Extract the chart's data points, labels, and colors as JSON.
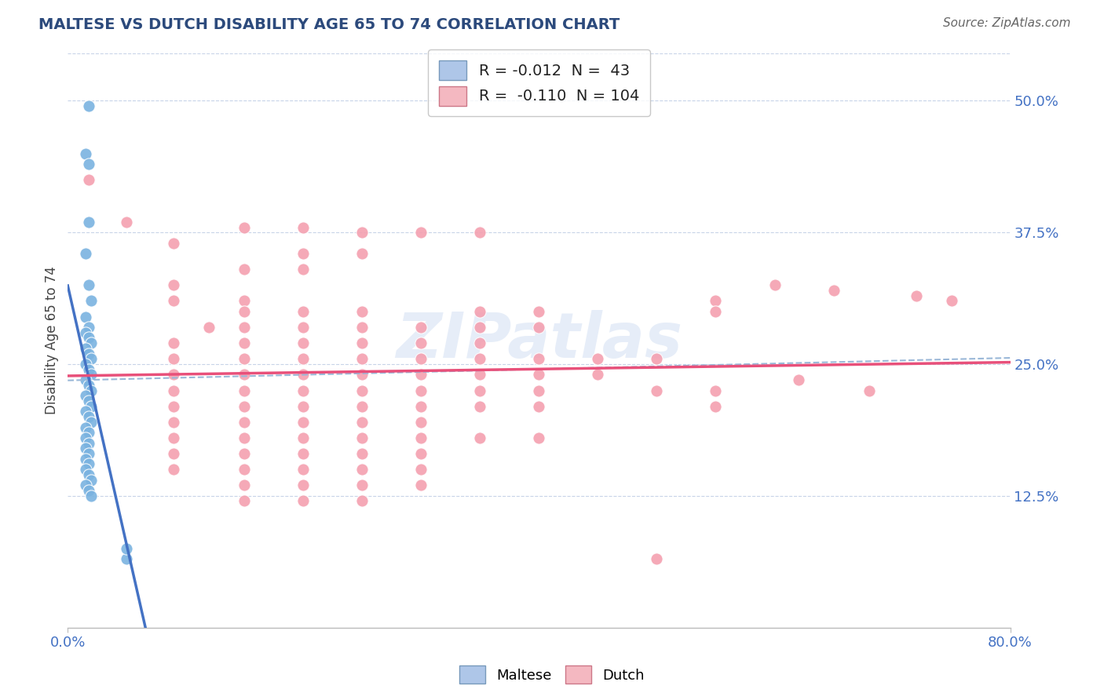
{
  "title": "MALTESE VS DUTCH DISABILITY AGE 65 TO 74 CORRELATION CHART",
  "source": "Source: ZipAtlas.com",
  "ylabel": "Disability Age 65 to 74",
  "xlim": [
    0.0,
    0.8
  ],
  "ylim": [
    0.0,
    0.545
  ],
  "ytick_labels": [
    "12.5%",
    "25.0%",
    "37.5%",
    "50.0%"
  ],
  "ytick_values": [
    0.125,
    0.25,
    0.375,
    0.5
  ],
  "maltese_color": "#7ab3e0",
  "dutch_color": "#f4a0b0",
  "maltese_line_color": "#4472c4",
  "dutch_line_color": "#e8507a",
  "trend_line_color": "#9ab8d8",
  "background_color": "#ffffff",
  "grid_color": "#c8d4e8",
  "watermark": "ZIPatlas",
  "maltese_points": [
    [
      0.018,
      0.495
    ],
    [
      0.015,
      0.45
    ],
    [
      0.018,
      0.44
    ],
    [
      0.018,
      0.385
    ],
    [
      0.015,
      0.355
    ],
    [
      0.018,
      0.325
    ],
    [
      0.02,
      0.31
    ],
    [
      0.015,
      0.295
    ],
    [
      0.018,
      0.285
    ],
    [
      0.015,
      0.28
    ],
    [
      0.018,
      0.275
    ],
    [
      0.02,
      0.27
    ],
    [
      0.015,
      0.265
    ],
    [
      0.018,
      0.26
    ],
    [
      0.02,
      0.255
    ],
    [
      0.015,
      0.25
    ],
    [
      0.018,
      0.245
    ],
    [
      0.02,
      0.24
    ],
    [
      0.015,
      0.235
    ],
    [
      0.018,
      0.23
    ],
    [
      0.02,
      0.225
    ],
    [
      0.015,
      0.22
    ],
    [
      0.018,
      0.215
    ],
    [
      0.02,
      0.21
    ],
    [
      0.015,
      0.205
    ],
    [
      0.018,
      0.2
    ],
    [
      0.02,
      0.195
    ],
    [
      0.015,
      0.19
    ],
    [
      0.018,
      0.185
    ],
    [
      0.015,
      0.18
    ],
    [
      0.018,
      0.175
    ],
    [
      0.015,
      0.17
    ],
    [
      0.018,
      0.165
    ],
    [
      0.015,
      0.16
    ],
    [
      0.018,
      0.155
    ],
    [
      0.015,
      0.15
    ],
    [
      0.018,
      0.145
    ],
    [
      0.02,
      0.14
    ],
    [
      0.015,
      0.135
    ],
    [
      0.018,
      0.13
    ],
    [
      0.02,
      0.125
    ],
    [
      0.05,
      0.065
    ],
    [
      0.05,
      0.075
    ]
  ],
  "dutch_points": [
    [
      0.018,
      0.425
    ],
    [
      0.05,
      0.385
    ],
    [
      0.09,
      0.365
    ],
    [
      0.15,
      0.38
    ],
    [
      0.2,
      0.38
    ],
    [
      0.25,
      0.375
    ],
    [
      0.3,
      0.375
    ],
    [
      0.35,
      0.375
    ],
    [
      0.2,
      0.355
    ],
    [
      0.25,
      0.355
    ],
    [
      0.15,
      0.34
    ],
    [
      0.2,
      0.34
    ],
    [
      0.09,
      0.325
    ],
    [
      0.09,
      0.31
    ],
    [
      0.15,
      0.31
    ],
    [
      0.55,
      0.31
    ],
    [
      0.15,
      0.3
    ],
    [
      0.2,
      0.3
    ],
    [
      0.25,
      0.3
    ],
    [
      0.35,
      0.3
    ],
    [
      0.4,
      0.3
    ],
    [
      0.55,
      0.3
    ],
    [
      0.12,
      0.285
    ],
    [
      0.15,
      0.285
    ],
    [
      0.2,
      0.285
    ],
    [
      0.25,
      0.285
    ],
    [
      0.3,
      0.285
    ],
    [
      0.35,
      0.285
    ],
    [
      0.4,
      0.285
    ],
    [
      0.09,
      0.27
    ],
    [
      0.15,
      0.27
    ],
    [
      0.2,
      0.27
    ],
    [
      0.25,
      0.27
    ],
    [
      0.3,
      0.27
    ],
    [
      0.35,
      0.27
    ],
    [
      0.09,
      0.255
    ],
    [
      0.15,
      0.255
    ],
    [
      0.2,
      0.255
    ],
    [
      0.25,
      0.255
    ],
    [
      0.3,
      0.255
    ],
    [
      0.35,
      0.255
    ],
    [
      0.4,
      0.255
    ],
    [
      0.45,
      0.255
    ],
    [
      0.5,
      0.255
    ],
    [
      0.09,
      0.24
    ],
    [
      0.15,
      0.24
    ],
    [
      0.2,
      0.24
    ],
    [
      0.25,
      0.24
    ],
    [
      0.3,
      0.24
    ],
    [
      0.35,
      0.24
    ],
    [
      0.4,
      0.24
    ],
    [
      0.45,
      0.24
    ],
    [
      0.09,
      0.225
    ],
    [
      0.15,
      0.225
    ],
    [
      0.2,
      0.225
    ],
    [
      0.25,
      0.225
    ],
    [
      0.3,
      0.225
    ],
    [
      0.35,
      0.225
    ],
    [
      0.4,
      0.225
    ],
    [
      0.5,
      0.225
    ],
    [
      0.55,
      0.225
    ],
    [
      0.09,
      0.21
    ],
    [
      0.15,
      0.21
    ],
    [
      0.2,
      0.21
    ],
    [
      0.25,
      0.21
    ],
    [
      0.3,
      0.21
    ],
    [
      0.35,
      0.21
    ],
    [
      0.4,
      0.21
    ],
    [
      0.09,
      0.195
    ],
    [
      0.15,
      0.195
    ],
    [
      0.2,
      0.195
    ],
    [
      0.25,
      0.195
    ],
    [
      0.3,
      0.195
    ],
    [
      0.09,
      0.18
    ],
    [
      0.15,
      0.18
    ],
    [
      0.2,
      0.18
    ],
    [
      0.25,
      0.18
    ],
    [
      0.3,
      0.18
    ],
    [
      0.35,
      0.18
    ],
    [
      0.4,
      0.18
    ],
    [
      0.09,
      0.165
    ],
    [
      0.15,
      0.165
    ],
    [
      0.2,
      0.165
    ],
    [
      0.25,
      0.165
    ],
    [
      0.3,
      0.165
    ],
    [
      0.09,
      0.15
    ],
    [
      0.15,
      0.15
    ],
    [
      0.2,
      0.15
    ],
    [
      0.25,
      0.15
    ],
    [
      0.3,
      0.15
    ],
    [
      0.15,
      0.135
    ],
    [
      0.2,
      0.135
    ],
    [
      0.25,
      0.135
    ],
    [
      0.3,
      0.135
    ],
    [
      0.15,
      0.12
    ],
    [
      0.2,
      0.12
    ],
    [
      0.25,
      0.12
    ],
    [
      0.5,
      0.065
    ],
    [
      0.55,
      0.21
    ],
    [
      0.62,
      0.235
    ],
    [
      0.68,
      0.225
    ],
    [
      0.6,
      0.325
    ],
    [
      0.65,
      0.32
    ],
    [
      0.72,
      0.315
    ],
    [
      0.75,
      0.31
    ]
  ]
}
